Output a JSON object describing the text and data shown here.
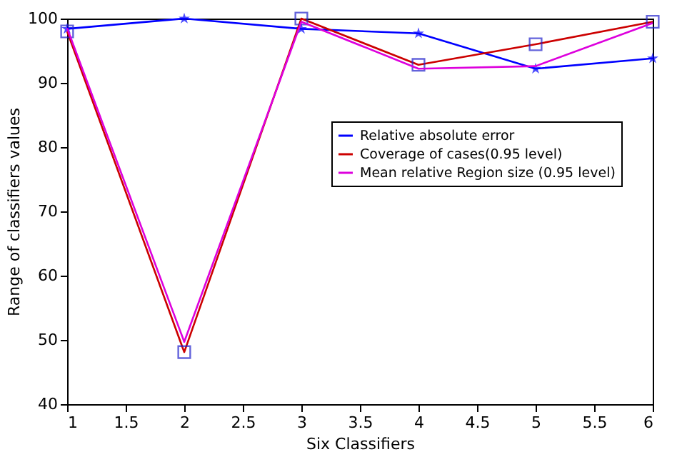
{
  "chart_data": {
    "type": "line",
    "xlabel": "Six Classifiers",
    "ylabel": "Range of classifiers values",
    "x": [
      1,
      2,
      3,
      4,
      5,
      6
    ],
    "series": [
      {
        "name": "Relative absolute error",
        "color": "#0000ff",
        "marker": "star",
        "values": [
          98.4,
          100,
          98.4,
          97.7,
          92.2,
          93.8
        ]
      },
      {
        "name": "Coverage of cases(0.95 level)",
        "color": "#cc0000",
        "marker": "square",
        "values": [
          98.0,
          48.1,
          100,
          92.8,
          96.0,
          99.5
        ]
      },
      {
        "name": "Mean relative Region size (0.95 level)",
        "color": "#dd00dd",
        "marker": "none",
        "values": [
          98.5,
          49.7,
          99.5,
          92.2,
          92.6,
          99.3
        ]
      }
    ],
    "xlim": [
      1,
      6
    ],
    "xticks": [
      1,
      1.5,
      2,
      2.5,
      3,
      3.5,
      4,
      4.5,
      5,
      5.5,
      6
    ],
    "ylim": [
      40,
      100
    ],
    "yticks": [
      40,
      50,
      60,
      70,
      80,
      90,
      100
    ],
    "grid": false,
    "legend": "right",
    "line_style": "solid"
  }
}
